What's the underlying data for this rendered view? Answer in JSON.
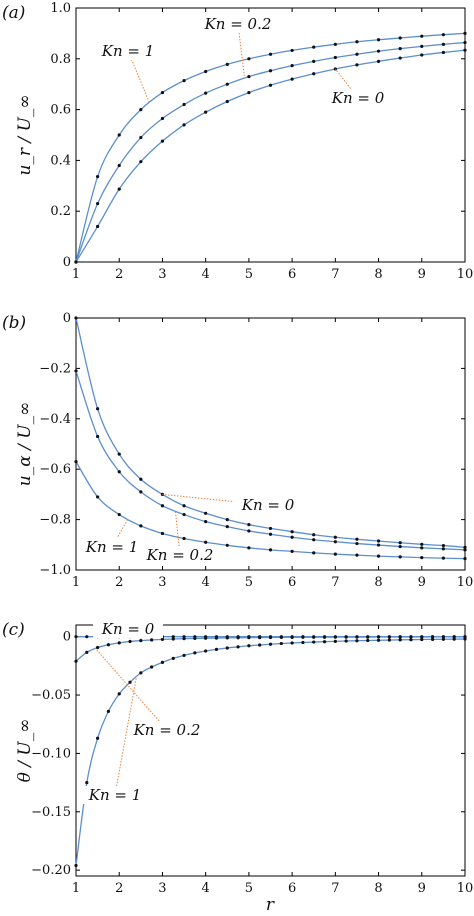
{
  "figure": {
    "xlabel": "r"
  },
  "chart_data": [
    {
      "type": "line",
      "panel_label": "(a)",
      "ylabel": "u_r / U_∞",
      "xlim": [
        1,
        10
      ],
      "ylim": [
        0,
        1
      ],
      "xticks": [
        "1",
        "2",
        "3",
        "4",
        "5",
        "6",
        "7",
        "8",
        "9",
        "10"
      ],
      "yticks": [
        "0",
        "0.2",
        "0.4",
        "0.6",
        "0.8",
        "1.0"
      ],
      "x": [
        1,
        1.5,
        2,
        2.5,
        3,
        3.5,
        4,
        4.5,
        5,
        5.5,
        6,
        6.5,
        7,
        7.5,
        8,
        8.5,
        9,
        9.5,
        10
      ],
      "series": [
        {
          "name": "Kn = 1",
          "values": [
            0,
            0.336,
            0.5,
            0.6,
            0.667,
            0.714,
            0.75,
            0.778,
            0.8,
            0.818,
            0.833,
            0.846,
            0.857,
            0.867,
            0.875,
            0.882,
            0.889,
            0.895,
            0.9
          ]
        },
        {
          "name": "Kn = 0.2",
          "values": [
            0,
            0.23,
            0.38,
            0.49,
            0.565,
            0.62,
            0.665,
            0.7,
            0.73,
            0.753,
            0.773,
            0.79,
            0.805,
            0.818,
            0.83,
            0.84,
            0.849,
            0.857,
            0.864
          ]
        },
        {
          "name": "Kn = 0",
          "values": [
            0,
            0.14,
            0.287,
            0.395,
            0.476,
            0.54,
            0.59,
            0.632,
            0.667,
            0.696,
            0.72,
            0.741,
            0.76,
            0.776,
            0.79,
            0.803,
            0.815,
            0.825,
            0.834
          ]
        }
      ],
      "annotations": [
        {
          "text": "Kn = 1",
          "points_to": "Kn = 1"
        },
        {
          "text": "Kn = 0.2",
          "points_to": "Kn = 0.2"
        },
        {
          "text": "Kn = 0",
          "points_to": "Kn = 0"
        }
      ]
    },
    {
      "type": "line",
      "panel_label": "(b)",
      "ylabel": "u_α / U_∞",
      "xlim": [
        1,
        10
      ],
      "ylim": [
        -1,
        0
      ],
      "xticks": [
        "1",
        "2",
        "3",
        "4",
        "5",
        "6",
        "7",
        "8",
        "9",
        "10"
      ],
      "yticks": [
        "0",
        "−0.2",
        "−0.4",
        "−0.6",
        "−0.8",
        "−1.0"
      ],
      "x": [
        1,
        1.5,
        2,
        2.5,
        3,
        3.5,
        4,
        4.5,
        5,
        5.5,
        6,
        6.5,
        7,
        7.5,
        8,
        8.5,
        9,
        9.5,
        10
      ],
      "series": [
        {
          "name": "Kn = 0",
          "values": [
            0,
            -0.36,
            -0.54,
            -0.64,
            -0.7,
            -0.745,
            -0.775,
            -0.8,
            -0.82,
            -0.835,
            -0.848,
            -0.86,
            -0.87,
            -0.878,
            -0.885,
            -0.892,
            -0.898,
            -0.903,
            -0.91
          ]
        },
        {
          "name": "Kn = 0.2",
          "values": [
            -0.21,
            -0.47,
            -0.61,
            -0.69,
            -0.745,
            -0.78,
            -0.808,
            -0.828,
            -0.845,
            -0.858,
            -0.87,
            -0.88,
            -0.888,
            -0.895,
            -0.901,
            -0.907,
            -0.912,
            -0.916,
            -0.92
          ]
        },
        {
          "name": "Kn = 1",
          "values": [
            -0.57,
            -0.71,
            -0.78,
            -0.825,
            -0.855,
            -0.875,
            -0.89,
            -0.902,
            -0.912,
            -0.92,
            -0.926,
            -0.932,
            -0.937,
            -0.941,
            -0.945,
            -0.948,
            -0.951,
            -0.953,
            -0.955
          ]
        }
      ],
      "annotations": [
        {
          "text": "Kn = 0",
          "points_to": "Kn = 0"
        },
        {
          "text": "Kn = 1",
          "points_to": "Kn = 1"
        },
        {
          "text": "Kn = 0.2",
          "points_to": "Kn = 0.2"
        }
      ]
    },
    {
      "type": "line",
      "panel_label": "(c)",
      "ylabel": "θ / U_∞",
      "xlim": [
        1,
        10
      ],
      "ylim": [
        -0.205,
        0.01
      ],
      "xticks": [
        "1",
        "2",
        "3",
        "4",
        "5",
        "6",
        "7",
        "8",
        "9",
        "10"
      ],
      "yticks": [
        "0",
        "−0.05",
        "−0.10",
        "−0.15",
        "−0.20"
      ],
      "x": [
        1,
        1.25,
        1.5,
        1.75,
        2,
        2.25,
        2.5,
        2.75,
        3,
        3.25,
        3.5,
        3.75,
        4,
        4.25,
        4.5,
        4.75,
        5,
        5.25,
        5.5,
        5.75,
        6,
        6.25,
        6.5,
        6.75,
        7,
        7.25,
        7.5,
        7.75,
        8,
        8.25,
        8.5,
        8.75,
        9,
        9.25,
        9.5,
        9.75,
        10
      ],
      "series": [
        {
          "name": "Kn = 0",
          "values": [
            0,
            0,
            0,
            0,
            0,
            0,
            0,
            0,
            0,
            0,
            0,
            0,
            0,
            0,
            0,
            0,
            0,
            0,
            0,
            0,
            0,
            0,
            0,
            0,
            0,
            0,
            0,
            0,
            0,
            0,
            0,
            0,
            0,
            0,
            0,
            0,
            0
          ]
        },
        {
          "name": "Kn = 0.2",
          "values": [
            -0.021,
            -0.0134,
            -0.0093,
            -0.0069,
            -0.0053,
            -0.0041,
            -0.0034,
            -0.0028,
            -0.0023,
            -0.002,
            -0.0017,
            -0.0015,
            -0.0013,
            -0.0012,
            -0.001,
            -0.0009,
            -0.0008,
            -0.0008,
            -0.0007,
            -0.0006,
            -0.0006,
            -0.0005,
            -0.0005,
            -0.0005,
            -0.0004,
            -0.0004,
            -0.0004,
            -0.0004,
            -0.0003,
            -0.0003,
            -0.0003,
            -0.0003,
            -0.0003,
            -0.0002,
            -0.0002,
            -0.0002,
            -0.0002
          ]
        },
        {
          "name": "Kn = 1",
          "values": [
            -0.196,
            -0.125,
            -0.087,
            -0.064,
            -0.049,
            -0.039,
            -0.031,
            -0.026,
            -0.022,
            -0.0186,
            -0.016,
            -0.0139,
            -0.0123,
            -0.0109,
            -0.0097,
            -0.0087,
            -0.0078,
            -0.0071,
            -0.0065,
            -0.0059,
            -0.0054,
            -0.005,
            -0.0046,
            -0.0043,
            -0.004,
            -0.0037,
            -0.0035,
            -0.0033,
            -0.0031,
            -0.0029,
            -0.0027,
            -0.0026,
            -0.0024,
            -0.0023,
            -0.0022,
            -0.0021,
            -0.002
          ]
        }
      ],
      "annotations": [
        {
          "text": "Kn = 0",
          "points_to": "Kn = 0"
        },
        {
          "text": "Kn = 0.2",
          "points_to": "Kn = 0.2"
        },
        {
          "text": "Kn = 1",
          "points_to": "Kn = 1"
        }
      ]
    }
  ]
}
